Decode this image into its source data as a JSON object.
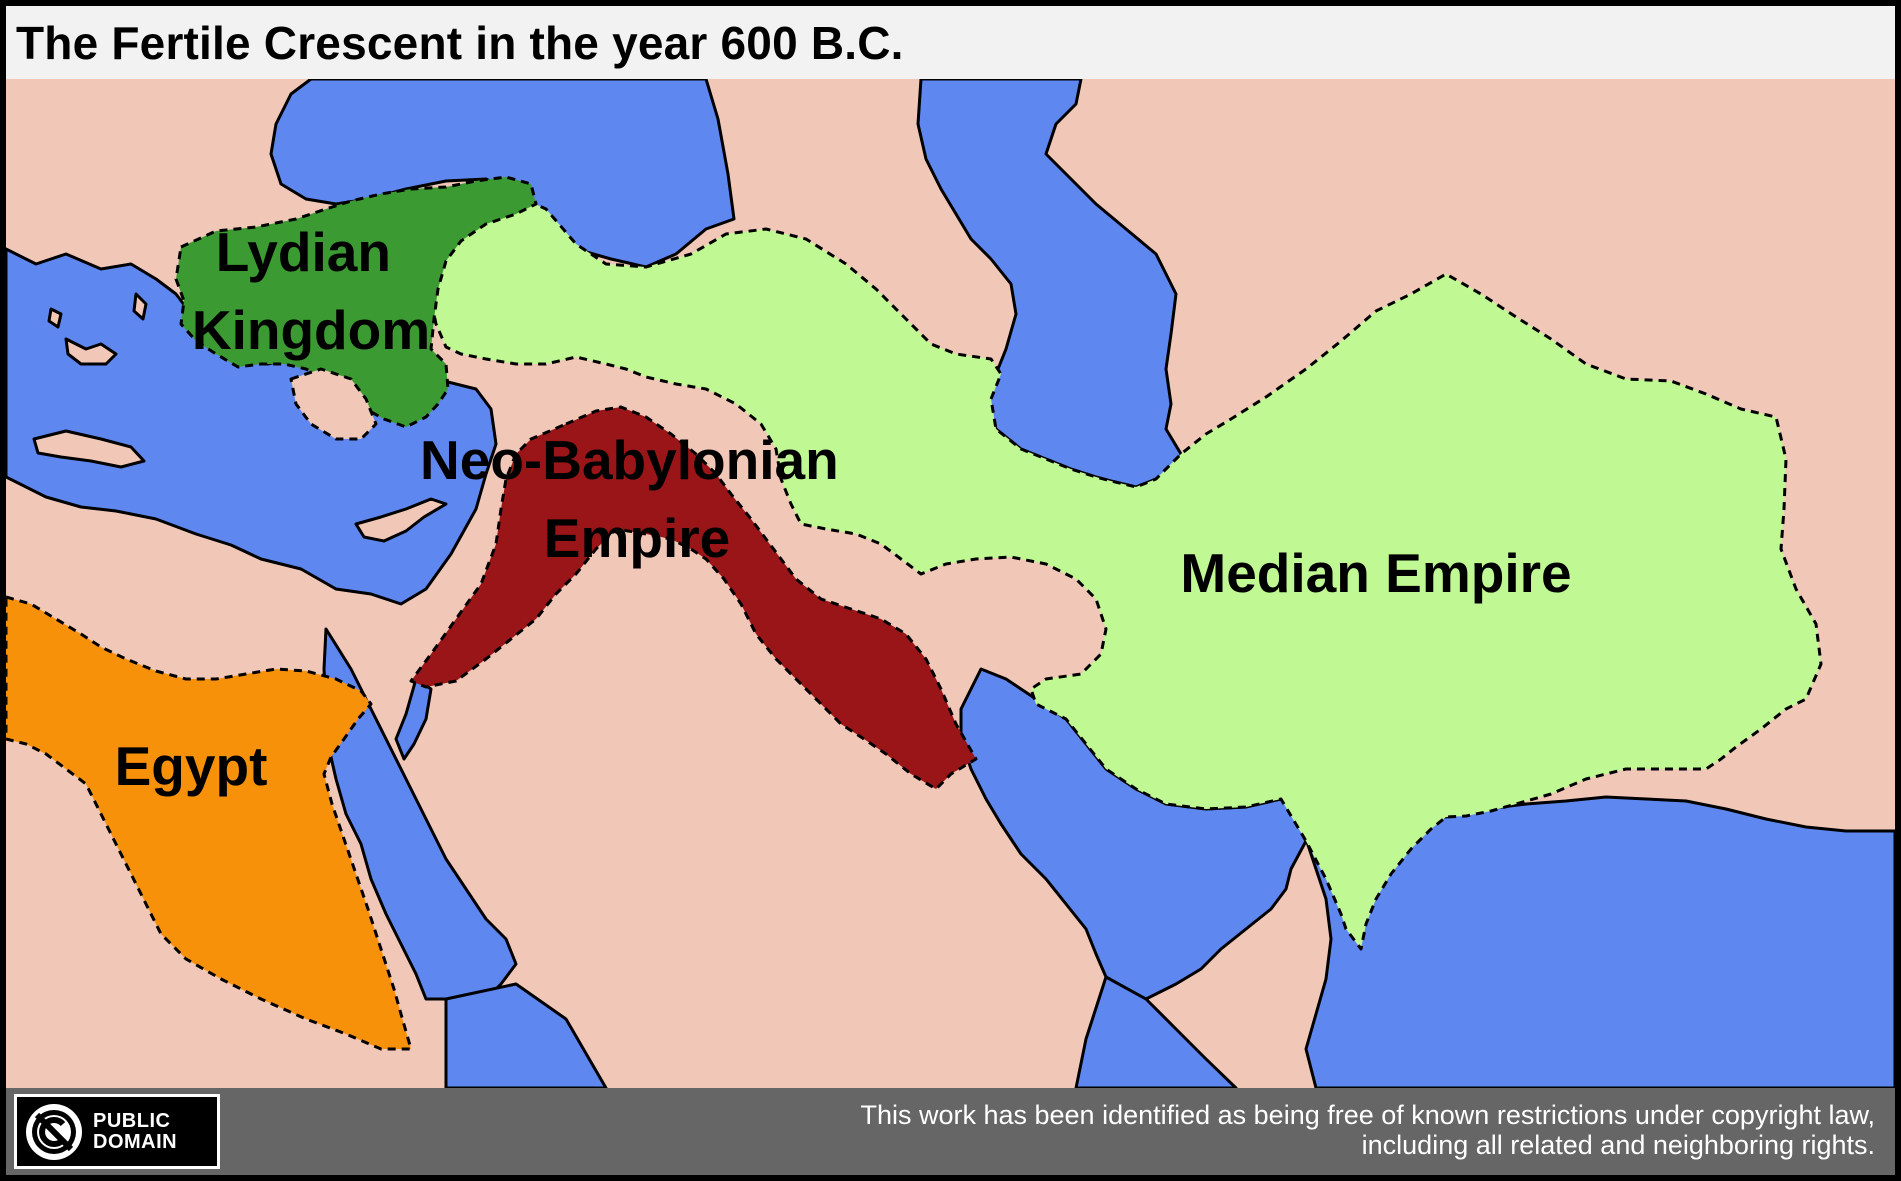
{
  "title": "The Fertile Crescent in the year 600 B.C.",
  "colors": {
    "land": "#f1c8b8",
    "water": "#5e87f0",
    "lydian_kingdom": "#3c9a32",
    "median_empire": "#c0f993",
    "neo_babylonian_empire": "#9a1518",
    "egypt": "#f7910a",
    "footer": "#666666",
    "title_background": "#f2f2f2"
  },
  "regions": [
    {
      "id": "lydian",
      "lines": [
        "Lydian",
        "Kingdom"
      ]
    },
    {
      "id": "neo_babylonian",
      "lines": [
        "Neo-Babylonian",
        "Empire"
      ]
    },
    {
      "id": "median",
      "lines": [
        "Median Empire"
      ]
    },
    {
      "id": "egypt",
      "lines": [
        "Egypt"
      ]
    }
  ],
  "license": {
    "badge_icon": "public-domain-icon",
    "badge_lines": [
      "PUBLIC",
      "DOMAIN"
    ],
    "notice_lines": [
      "This work has been identified as being free of known restrictions under copyright law,",
      "including all related and neighboring rights."
    ]
  }
}
